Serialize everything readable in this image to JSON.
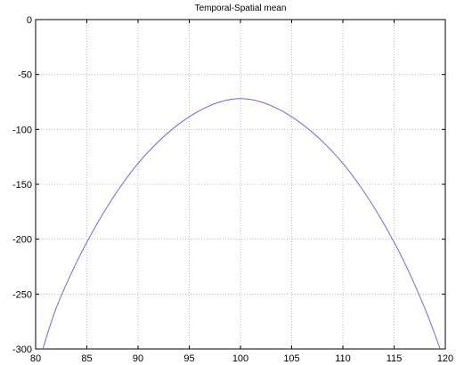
{
  "chart_data": {
    "type": "line",
    "title": "Temporal-Spatial mean",
    "xlabel": "",
    "ylabel": "",
    "xlim": [
      80,
      120
    ],
    "ylim": [
      -300,
      0
    ],
    "xticks": [
      80,
      85,
      90,
      95,
      100,
      105,
      110,
      115,
      120
    ],
    "yticks": [
      0,
      -50,
      -100,
      -150,
      -200,
      -250,
      -300
    ],
    "grid": true,
    "series": [
      {
        "color": "#6a6ad8",
        "x": [
          80.7,
          82,
          84,
          86,
          88,
          90,
          92,
          94,
          96,
          98,
          100,
          102,
          104,
          106,
          108,
          110,
          112,
          114,
          116,
          118,
          119.5
        ],
        "y": [
          -300,
          -263,
          -221,
          -186,
          -156,
          -131,
          -111,
          -95,
          -83,
          -75,
          -72,
          -75,
          -83,
          -95,
          -111,
          -131,
          -156,
          -186,
          -221,
          -263,
          -300
        ]
      }
    ]
  }
}
